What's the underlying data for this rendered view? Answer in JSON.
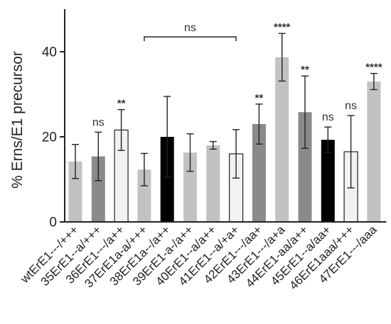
{
  "chart_data": {
    "type": "bar",
    "title": "",
    "xlabel": "",
    "ylabel": "% Erns/E1 precursor",
    "ylim": [
      0,
      50
    ],
    "yticks": [
      0,
      20,
      40
    ],
    "grid": false,
    "legend": "none",
    "categories": [
      "wtErE1---/+++",
      "35ErE1--a/+++",
      "36ErE1---/a++",
      "37ErE1a-a/+++",
      "38ErE1a--/a++",
      "39ErE1-a-/a++",
      "40ErE1--a/a++",
      "41ErE1--a/+a+",
      "42ErE1---/aa+",
      "43ErE1---/a+a",
      "44ErE1-aa/a++",
      "45ErE1--a/aa+",
      "46ErE1aaa/+++",
      "47ErE1---/aaa"
    ],
    "values": [
      14.2,
      15.4,
      21.6,
      12.3,
      20.0,
      16.3,
      18.0,
      16.0,
      23.0,
      38.7,
      25.8,
      19.3,
      16.5,
      33.0
    ],
    "errors": [
      4.0,
      5.7,
      4.8,
      3.8,
      9.5,
      4.4,
      0.9,
      5.7,
      4.7,
      5.6,
      8.5,
      3.0,
      8.5,
      1.9
    ],
    "bar_colors": [
      "#c2c2c2",
      "#8a8a8a",
      "#f2f2f2",
      "#c2c2c2",
      "#000000",
      "#c2c2c2",
      "#c2c2c2",
      "#f2f2f2",
      "#8a8a8a",
      "#c2c2c2",
      "#8a8a8a",
      "#000000",
      "#f2f2f2",
      "#c2c2c2"
    ],
    "bar_outlined": [
      false,
      false,
      true,
      false,
      false,
      false,
      false,
      true,
      false,
      false,
      false,
      false,
      true,
      false
    ],
    "annotations": [
      "",
      "ns",
      "**",
      "",
      "",
      "",
      "",
      "",
      "**",
      "****",
      "**",
      "ns",
      "ns",
      "****"
    ],
    "bracket": {
      "label": "ns",
      "from_index": 3,
      "to_index": 7,
      "y": 43.5
    }
  }
}
